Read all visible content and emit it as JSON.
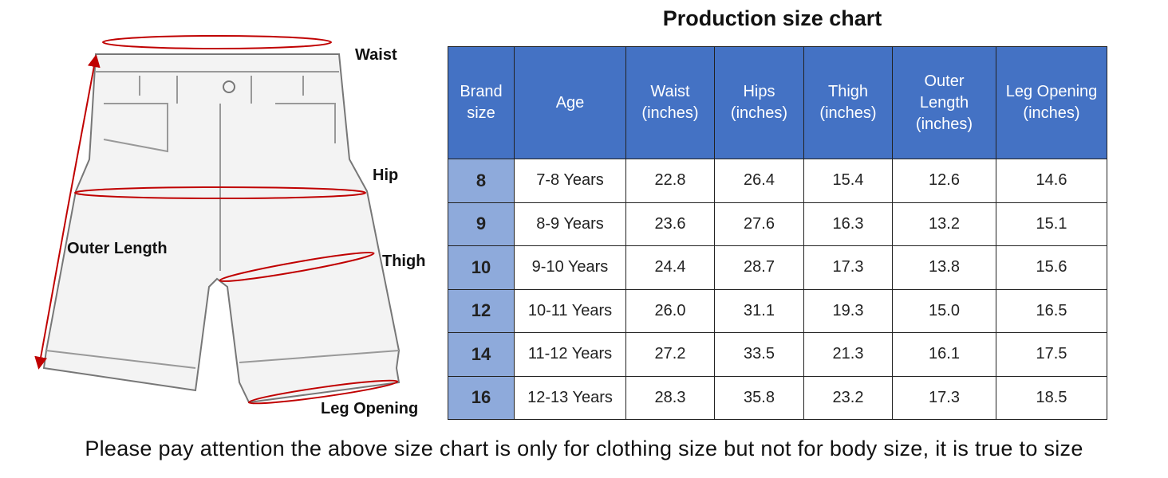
{
  "figure": {
    "labels": {
      "waist": "Waist",
      "hip": "Hip",
      "outer_length": "Outer Length",
      "thigh": "Thigh",
      "leg_opening": "Leg Opening"
    }
  },
  "table": {
    "title": "Production size chart",
    "headers": [
      [
        "Brand",
        "size"
      ],
      [
        "Age"
      ],
      [
        "Waist",
        "(inches)"
      ],
      [
        "Hips",
        "(inches)"
      ],
      [
        "Thigh",
        "(inches)"
      ],
      [
        "Outer",
        "Length",
        "(inches)"
      ],
      [
        "Leg Opening",
        "(inches)"
      ]
    ],
    "rows": [
      [
        "8",
        "7-8 Years",
        "22.8",
        "26.4",
        "15.4",
        "12.6",
        "14.6"
      ],
      [
        "9",
        "8-9 Years",
        "23.6",
        "27.6",
        "16.3",
        "13.2",
        "15.1"
      ],
      [
        "10",
        "9-10 Years",
        "24.4",
        "28.7",
        "17.3",
        "13.8",
        "15.6"
      ],
      [
        "12",
        "10-11 Years",
        "26.0",
        "31.1",
        "19.3",
        "15.0",
        "16.5"
      ],
      [
        "14",
        "11-12 Years",
        "27.2",
        "33.5",
        "21.3",
        "16.1",
        "17.5"
      ],
      [
        "16",
        "12-13 Years",
        "28.3",
        "35.8",
        "23.2",
        "17.3",
        "18.5"
      ]
    ]
  },
  "footer": "Please pay attention the above size chart is only for clothing size but not for body size, it is true to size"
}
